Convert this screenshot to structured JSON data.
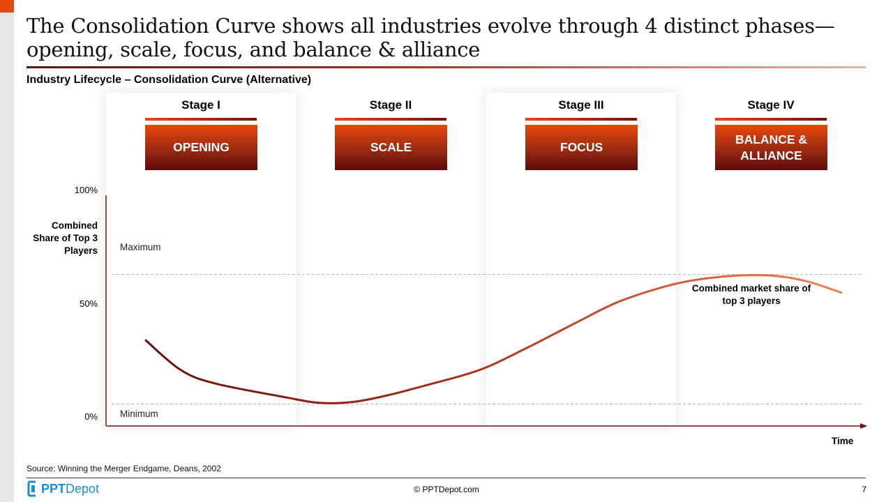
{
  "slide": {
    "title": "The Consolidation Curve shows all industries evolve through 4 distinct phases—opening, scale, focus, and balance & alliance",
    "subtitle": "Industry Lifecycle – Consolidation Curve (Alternative)",
    "source": "Source: Winning the Merger Endgame, Deans, 2002",
    "copyright": "© PPTDepot.com",
    "page_number": "7",
    "logo": {
      "part1": "PPT",
      "part2": "Depot"
    }
  },
  "stages": [
    {
      "label": "Stage I",
      "name": "OPENING"
    },
    {
      "label": "Stage II",
      "name": "SCALE"
    },
    {
      "label": "Stage III",
      "name": "FOCUS"
    },
    {
      "label": "Stage IV",
      "name": "BALANCE & ALLIANCE"
    }
  ],
  "colors": {
    "accent": "#e8480a",
    "dark_red": "#6b0f0f",
    "curve_start": "#6b0f0f",
    "curve_end": "#f08050"
  },
  "chart_data": {
    "type": "line",
    "title": "Industry Lifecycle – Consolidation Curve (Alternative)",
    "ylabel": "Combined Share of Top 3 Players",
    "xlabel": "Time",
    "yticks": [
      "0%",
      "50%",
      "100%"
    ],
    "ylim": [
      0,
      100
    ],
    "xlim": [
      0,
      100
    ],
    "reference_lines": [
      {
        "name": "Maximum",
        "value": 63
      },
      {
        "name": "Minimum",
        "value": 6
      }
    ],
    "series": [
      {
        "name": "Combined market share of top 3 players",
        "x": [
          0,
          5,
          10,
          20,
          25,
          30,
          35,
          40,
          48,
          55,
          62,
          68,
          75,
          80,
          85,
          90,
          95,
          100
        ],
        "y": [
          34,
          21,
          15,
          9,
          6.5,
          7,
          10,
          14,
          21,
          31,
          42,
          51,
          58,
          61,
          62.5,
          62.5,
          60,
          55
        ]
      }
    ],
    "annotation": "Combined market share of top 3 players"
  }
}
